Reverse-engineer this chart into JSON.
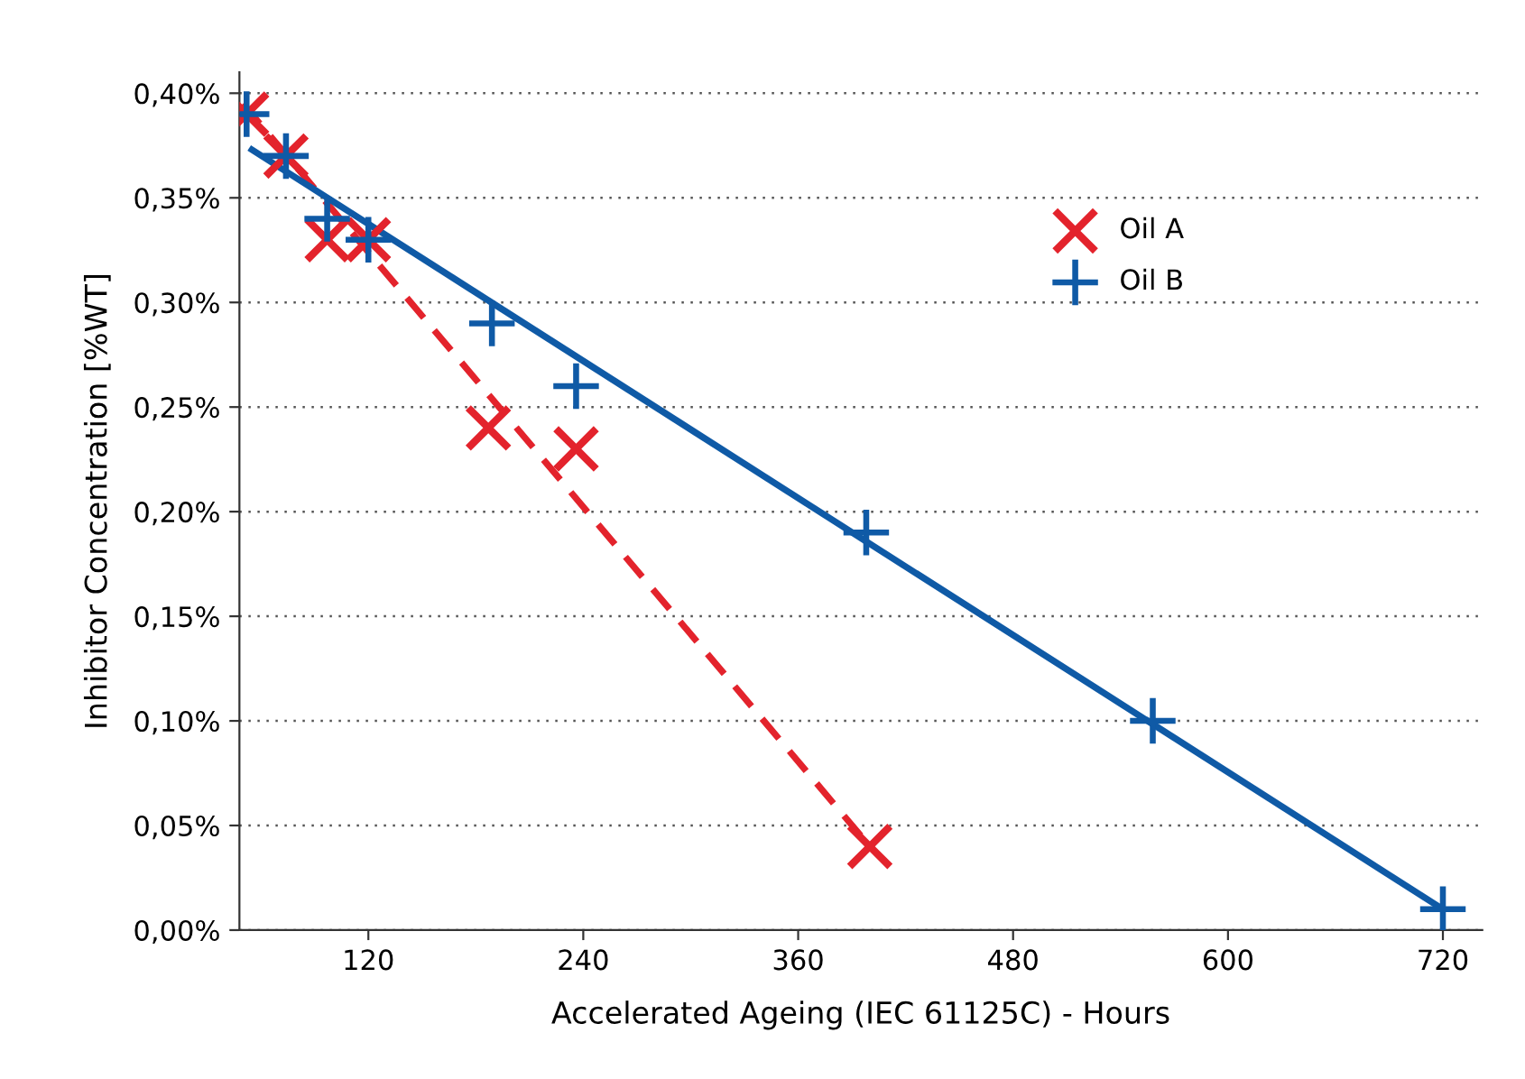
{
  "chart_data": {
    "type": "scatter",
    "xlabel": "Accelerated Ageing (IEC 61125C) - Hours",
    "ylabel": "Inhibitor Concentration [%WT]",
    "xlim": [
      48,
      742
    ],
    "xticks": [
      120,
      240,
      360,
      480,
      600,
      720
    ],
    "ylim": [
      0,
      0.41
    ],
    "yticks": [
      {
        "value": 0,
        "label": "0,00%"
      },
      {
        "value": 0.05,
        "label": "0,05%"
      },
      {
        "value": 0.1,
        "label": "0,10%"
      },
      {
        "value": 0.15,
        "label": "0,15%"
      },
      {
        "value": 0.2,
        "label": "0,20%"
      },
      {
        "value": 0.25,
        "label": "0,25%"
      },
      {
        "value": 0.3,
        "label": "0,30%"
      },
      {
        "value": 0.35,
        "label": "0,35%"
      },
      {
        "value": 0.4,
        "label": "0,40%"
      }
    ],
    "grid": "y",
    "legend": "top right",
    "marker": "cross",
    "series": [
      {
        "name": "Oil A",
        "color": "#e3232c",
        "x": [
          52,
          74,
          97,
          120,
          187,
          236,
          400
        ],
        "values": [
          0.39,
          0.37,
          0.33,
          0.33,
          0.24,
          0.23,
          0.04
        ]
      },
      {
        "name": "Oil B",
        "color": "#0f5aa6",
        "x": [
          52,
          74,
          97,
          120,
          189,
          236,
          398,
          558,
          720
        ],
        "values": [
          0.39,
          0.37,
          0.34,
          0.33,
          0.29,
          0.26,
          0.19,
          0.1,
          0.01
        ]
      },
      {
        "type": "line",
        "marker": "none",
        "line_style": "dashed",
        "color": "#e3232c",
        "x": [
          50,
          400
        ],
        "values": [
          0.395,
          0.04
        ]
      },
      {
        "type": "line",
        "marker": "none",
        "line_style": "solid",
        "color": "#0f5aa6",
        "x": [
          55,
          720
        ],
        "values": [
          0.373,
          0.01
        ]
      }
    ]
  }
}
